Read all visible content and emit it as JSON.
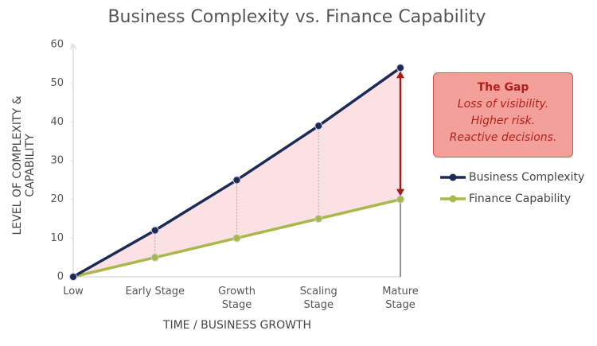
{
  "chart_data": {
    "type": "line",
    "title": "Business Complexity vs. Finance Capability",
    "x_label": "TIME / BUSINESS GROWTH",
    "y_label": "LEVEL OF COMPLEXITY & CAPABILITY",
    "categories": [
      "Low",
      "Early Stage",
      "Growth Stage",
      "Scaling Stage",
      "Mature Stage"
    ],
    "series": [
      {
        "name": "Business Complexity",
        "color": "#1b2b55",
        "values": [
          0,
          12,
          25,
          39,
          54
        ]
      },
      {
        "name": "Finance Capability",
        "color": "#a8b94a",
        "values": [
          0,
          5,
          10,
          15,
          20
        ]
      }
    ],
    "ylim": [
      0,
      60
    ],
    "yticks": [
      0,
      10,
      20,
      30,
      40,
      50,
      60
    ],
    "annotation": {
      "title": "The Gap",
      "lines": [
        "Loss of visibility.",
        "Higher risk.",
        "Reactive decisions."
      ]
    }
  }
}
